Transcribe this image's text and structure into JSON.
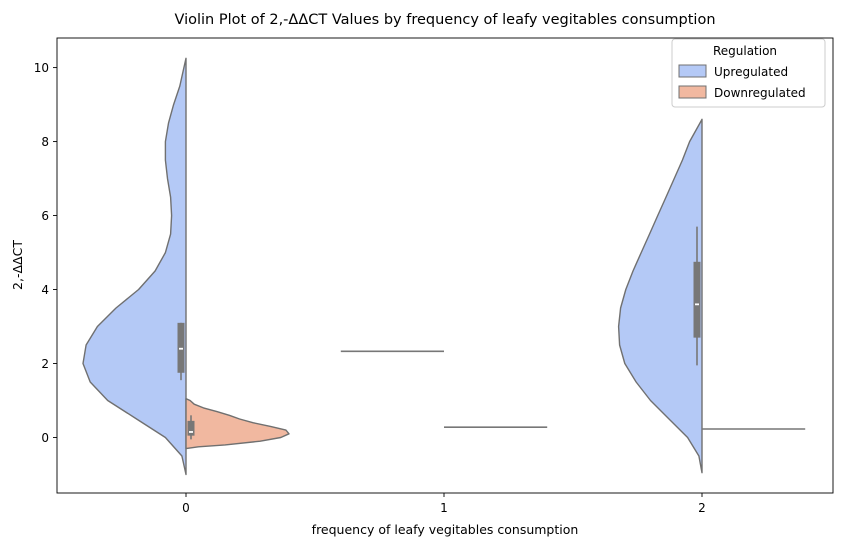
{
  "chart_data": {
    "type": "violin",
    "title": "Violin Plot of 2,-ΔΔCT Values by frequency of leafy vegitables consumption",
    "xlabel": "frequency of leafy vegitables consumption",
    "ylabel": "2,-ΔΔCT",
    "categories": [
      "0",
      "1",
      "2"
    ],
    "y_ticks": [
      "0",
      "2",
      "4",
      "6",
      "8",
      "10"
    ],
    "ylim": [
      -1.5,
      10.8
    ],
    "grid": false,
    "legend": {
      "title": "Regulation",
      "placement": "top-right",
      "entries": [
        {
          "label": "Upregulated",
          "color": "#b4c9f6"
        },
        {
          "label": "Downregulated",
          "color": "#f1b8a0"
        }
      ]
    },
    "series": [
      {
        "name": "Upregulated",
        "color": "#b4c9f6",
        "side": "left",
        "groups": [
          {
            "category": "0",
            "shape": "violin",
            "y_min": -1.0,
            "y_max": 10.25,
            "box": {
              "q1": 1.75,
              "median": 2.4,
              "q3": 3.1,
              "whisker_low": 1.55,
              "whisker_high": 3.1
            },
            "density": [
              [
                -1.0,
                0.0
              ],
              [
                -0.5,
                0.04
              ],
              [
                0.0,
                0.2
              ],
              [
                0.5,
                0.48
              ],
              [
                1.0,
                0.76
              ],
              [
                1.5,
                0.93
              ],
              [
                2.0,
                1.0
              ],
              [
                2.5,
                0.97
              ],
              [
                3.0,
                0.86
              ],
              [
                3.5,
                0.68
              ],
              [
                4.0,
                0.46
              ],
              [
                4.5,
                0.3
              ],
              [
                5.0,
                0.2
              ],
              [
                5.5,
                0.15
              ],
              [
                6.0,
                0.14
              ],
              [
                6.5,
                0.15
              ],
              [
                7.0,
                0.18
              ],
              [
                7.5,
                0.2
              ],
              [
                8.0,
                0.2
              ],
              [
                8.5,
                0.17
              ],
              [
                9.0,
                0.12
              ],
              [
                9.5,
                0.06
              ],
              [
                10.0,
                0.02
              ],
              [
                10.25,
                0.0
              ]
            ]
          },
          {
            "category": "1",
            "shape": "line",
            "value": 2.33,
            "halfwidth": 0.4
          },
          {
            "category": "2",
            "shape": "violin",
            "y_min": -0.95,
            "y_max": 8.6,
            "box": {
              "q1": 2.7,
              "median": 3.6,
              "q3": 4.75,
              "whisker_low": 1.95,
              "whisker_high": 5.7
            },
            "density": [
              [
                -0.95,
                0.0
              ],
              [
                -0.5,
                0.03
              ],
              [
                0.0,
                0.14
              ],
              [
                0.5,
                0.32
              ],
              [
                1.0,
                0.5
              ],
              [
                1.5,
                0.64
              ],
              [
                2.0,
                0.75
              ],
              [
                2.5,
                0.8
              ],
              [
                3.0,
                0.81
              ],
              [
                3.5,
                0.79
              ],
              [
                4.0,
                0.74
              ],
              [
                4.5,
                0.67
              ],
              [
                5.0,
                0.59
              ],
              [
                5.5,
                0.51
              ],
              [
                6.0,
                0.43
              ],
              [
                6.5,
                0.35
              ],
              [
                7.0,
                0.27
              ],
              [
                7.5,
                0.19
              ],
              [
                8.0,
                0.12
              ],
              [
                8.3,
                0.06
              ],
              [
                8.6,
                0.0
              ]
            ]
          }
        ]
      },
      {
        "name": "Downregulated",
        "color": "#f1b8a0",
        "side": "right",
        "groups": [
          {
            "category": "0",
            "shape": "violin",
            "y_min": -0.3,
            "y_max": 1.05,
            "box": {
              "q1": 0.05,
              "median": 0.15,
              "q3": 0.45,
              "whisker_low": -0.05,
              "whisker_high": 0.6
            },
            "density": [
              [
                -0.3,
                0.0
              ],
              [
                -0.25,
                0.12
              ],
              [
                -0.2,
                0.38
              ],
              [
                -0.1,
                0.72
              ],
              [
                0.0,
                0.92
              ],
              [
                0.1,
                1.0
              ],
              [
                0.2,
                0.97
              ],
              [
                0.3,
                0.82
              ],
              [
                0.4,
                0.65
              ],
              [
                0.5,
                0.52
              ],
              [
                0.6,
                0.42
              ],
              [
                0.7,
                0.3
              ],
              [
                0.8,
                0.17
              ],
              [
                0.9,
                0.08
              ],
              [
                1.0,
                0.04
              ],
              [
                1.05,
                0.0
              ]
            ]
          },
          {
            "category": "1",
            "shape": "line",
            "value": 0.28,
            "halfwidth": 0.4
          },
          {
            "category": "2",
            "shape": "line",
            "value": 0.23,
            "halfwidth": 0.4
          }
        ]
      }
    ]
  }
}
